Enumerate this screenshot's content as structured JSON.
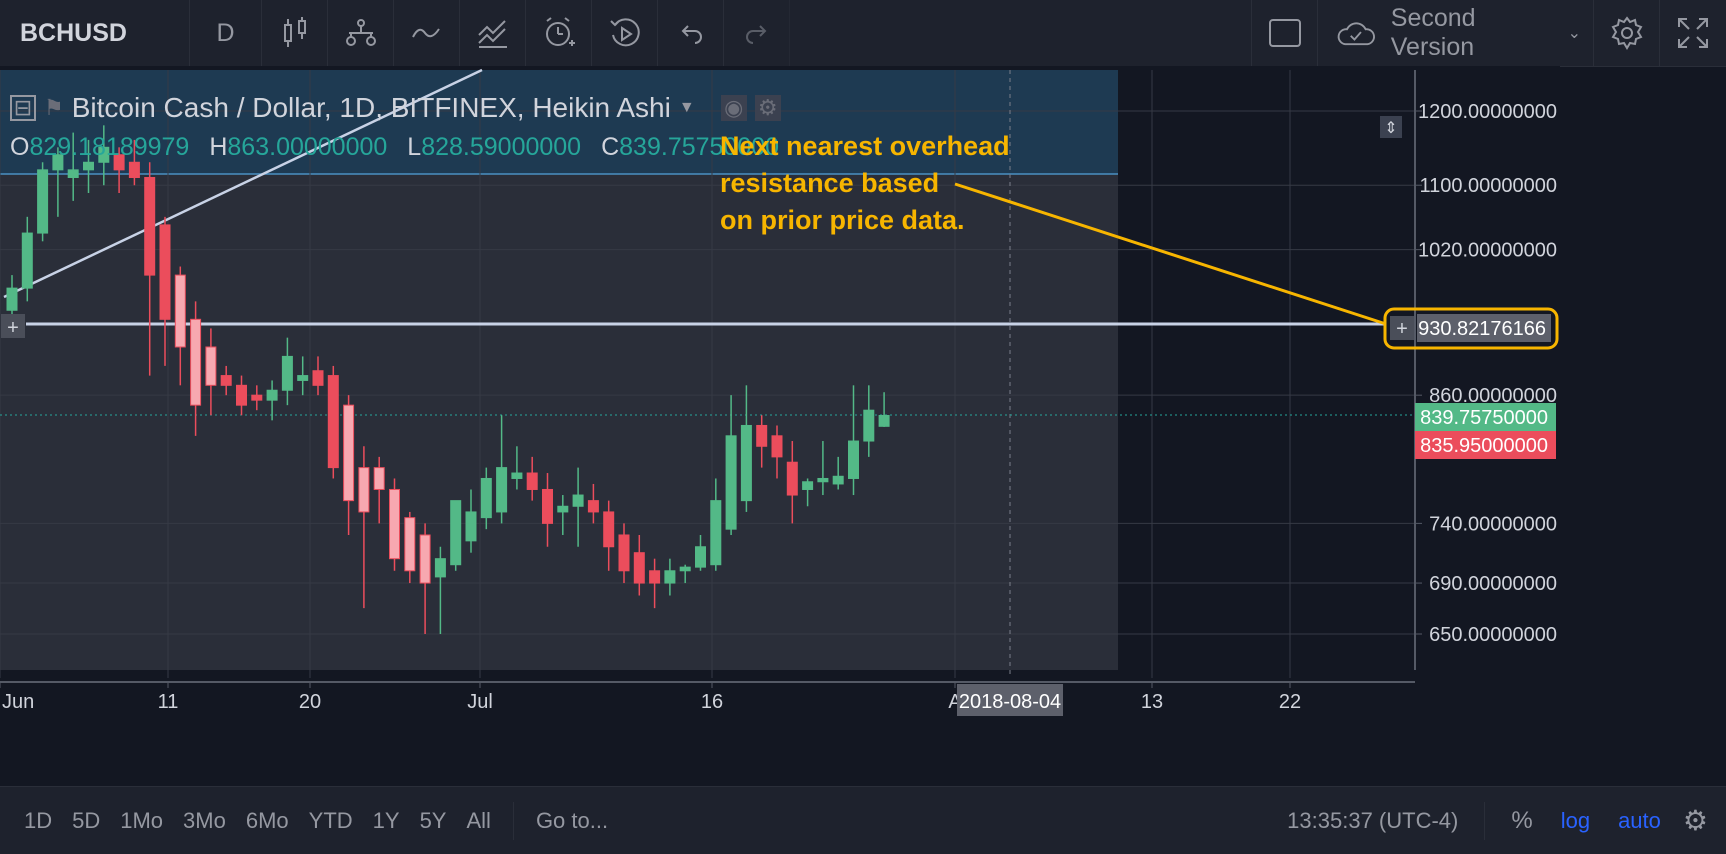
{
  "toolbar": {
    "symbol": "BCHUSD",
    "interval": "D",
    "icons": [
      "bar-style-icon",
      "indicators-icon",
      "compare-line-icon",
      "templates-icon",
      "alert-icon",
      "replay-icon",
      "undo-icon",
      "redo-icon"
    ],
    "layout_name": "Second Version",
    "right_icons": [
      "compare-square-icon",
      "cloud-icon",
      "settings-gear-icon",
      "fullscreen-icon"
    ]
  },
  "legend": {
    "title": "Bitcoin Cash / Dollar, 1D, BITFINEX, Heikin Ashi",
    "o_label": "O",
    "o_value": "829.18189979",
    "h_label": "H",
    "h_value": "863.00000000",
    "l_label": "L",
    "l_value": "828.59000000",
    "c_label": "C",
    "c_value": "839.75750000"
  },
  "annotation": {
    "text": "Next nearest overhead\nresistance based\non prior price data.",
    "color": "#f7b500"
  },
  "price_axis": {
    "ticks": [
      "1200.00000000",
      "1100.00000000",
      "1020.00000000",
      "860.00000000",
      "740.00000000",
      "690.00000000",
      "650.00000000"
    ],
    "resistance_label": "930.82176166",
    "last_price_label": "839.75750000",
    "prev_price_label": "835.95000000",
    "up_color": "#53b987",
    "down_color": "#eb4d5c"
  },
  "time_axis": {
    "labels": [
      "Jun",
      "11",
      "20",
      "Jul",
      "16",
      "A",
      "13",
      "22"
    ],
    "cursor_date": "2018-08-04"
  },
  "bottombar": {
    "ranges": [
      "1D",
      "5D",
      "1Mo",
      "3Mo",
      "6Mo",
      "YTD",
      "1Y",
      "5Y",
      "All"
    ],
    "goto": "Go to...",
    "clock": "13:35:37 (UTC-4)",
    "percent": "%",
    "log": "log",
    "auto": "auto"
  },
  "chart_data": {
    "type": "candlestick",
    "style": "Heikin Ashi",
    "y_scale": "log",
    "resistance_level": 930.82,
    "candles": [
      {
        "o": 950,
        "h": 990,
        "l": 930,
        "c": 975
      },
      {
        "o": 975,
        "h": 1060,
        "l": 960,
        "c": 1040
      },
      {
        "o": 1040,
        "h": 1130,
        "l": 1030,
        "c": 1120
      },
      {
        "o": 1120,
        "h": 1150,
        "l": 1060,
        "c": 1140
      },
      {
        "o": 1110,
        "h": 1170,
        "l": 1080,
        "c": 1120
      },
      {
        "o": 1120,
        "h": 1160,
        "l": 1090,
        "c": 1130
      },
      {
        "o": 1130,
        "h": 1180,
        "l": 1100,
        "c": 1150
      },
      {
        "o": 1140,
        "h": 1150,
        "l": 1090,
        "c": 1120
      },
      {
        "o": 1130,
        "h": 1160,
        "l": 1100,
        "c": 1110
      },
      {
        "o": 1110,
        "h": 1130,
        "l": 880,
        "c": 990
      },
      {
        "o": 1050,
        "h": 1060,
        "l": 890,
        "c": 940
      },
      {
        "o": 990,
        "h": 1000,
        "l": 870,
        "c": 910
      },
      {
        "o": 940,
        "h": 960,
        "l": 820,
        "c": 850
      },
      {
        "o": 910,
        "h": 930,
        "l": 840,
        "c": 870
      },
      {
        "o": 880,
        "h": 890,
        "l": 860,
        "c": 870
      },
      {
        "o": 870,
        "h": 880,
        "l": 840,
        "c": 850
      },
      {
        "o": 860,
        "h": 870,
        "l": 845,
        "c": 855
      },
      {
        "o": 855,
        "h": 875,
        "l": 835,
        "c": 865
      },
      {
        "o": 865,
        "h": 920,
        "l": 850,
        "c": 900
      },
      {
        "o": 875,
        "h": 900,
        "l": 860,
        "c": 880
      },
      {
        "o": 885,
        "h": 900,
        "l": 860,
        "c": 870
      },
      {
        "o": 880,
        "h": 890,
        "l": 780,
        "c": 790
      },
      {
        "o": 850,
        "h": 860,
        "l": 730,
        "c": 760
      },
      {
        "o": 790,
        "h": 810,
        "l": 670,
        "c": 750
      },
      {
        "o": 790,
        "h": 800,
        "l": 740,
        "c": 770
      },
      {
        "o": 770,
        "h": 780,
        "l": 700,
        "c": 710
      },
      {
        "o": 745,
        "h": 750,
        "l": 690,
        "c": 700
      },
      {
        "o": 730,
        "h": 740,
        "l": 650,
        "c": 690
      },
      {
        "o": 695,
        "h": 720,
        "l": 650,
        "c": 710
      },
      {
        "o": 705,
        "h": 760,
        "l": 700,
        "c": 760
      },
      {
        "o": 725,
        "h": 770,
        "l": 715,
        "c": 750
      },
      {
        "o": 745,
        "h": 790,
        "l": 735,
        "c": 780
      },
      {
        "o": 750,
        "h": 840,
        "l": 740,
        "c": 790
      },
      {
        "o": 780,
        "h": 810,
        "l": 770,
        "c": 785
      },
      {
        "o": 785,
        "h": 800,
        "l": 760,
        "c": 770
      },
      {
        "o": 770,
        "h": 785,
        "l": 720,
        "c": 740
      },
      {
        "o": 750,
        "h": 765,
        "l": 730,
        "c": 755
      },
      {
        "o": 755,
        "h": 790,
        "l": 720,
        "c": 765
      },
      {
        "o": 760,
        "h": 775,
        "l": 740,
        "c": 750
      },
      {
        "o": 750,
        "h": 760,
        "l": 700,
        "c": 720
      },
      {
        "o": 730,
        "h": 740,
        "l": 690,
        "c": 700
      },
      {
        "o": 715,
        "h": 730,
        "l": 680,
        "c": 690
      },
      {
        "o": 700,
        "h": 710,
        "l": 670,
        "c": 690
      },
      {
        "o": 690,
        "h": 710,
        "l": 680,
        "c": 700
      },
      {
        "o": 700,
        "h": 705,
        "l": 690,
        "c": 703
      },
      {
        "o": 703,
        "h": 730,
        "l": 700,
        "c": 720
      },
      {
        "o": 705,
        "h": 780,
        "l": 700,
        "c": 760
      },
      {
        "o": 735,
        "h": 860,
        "l": 730,
        "c": 820
      },
      {
        "o": 760,
        "h": 870,
        "l": 750,
        "c": 830
      },
      {
        "o": 830,
        "h": 840,
        "l": 790,
        "c": 810
      },
      {
        "o": 820,
        "h": 830,
        "l": 780,
        "c": 800
      },
      {
        "o": 795,
        "h": 815,
        "l": 740,
        "c": 765
      },
      {
        "o": 770,
        "h": 780,
        "l": 755,
        "c": 777
      },
      {
        "o": 777,
        "h": 815,
        "l": 765,
        "c": 780
      },
      {
        "o": 775,
        "h": 800,
        "l": 770,
        "c": 782
      },
      {
        "o": 780,
        "h": 870,
        "l": 765,
        "c": 815
      },
      {
        "o": 815,
        "h": 870,
        "l": 800,
        "c": 845
      },
      {
        "o": 829.18,
        "h": 863,
        "l": 828.59,
        "c": 839.76
      }
    ]
  }
}
